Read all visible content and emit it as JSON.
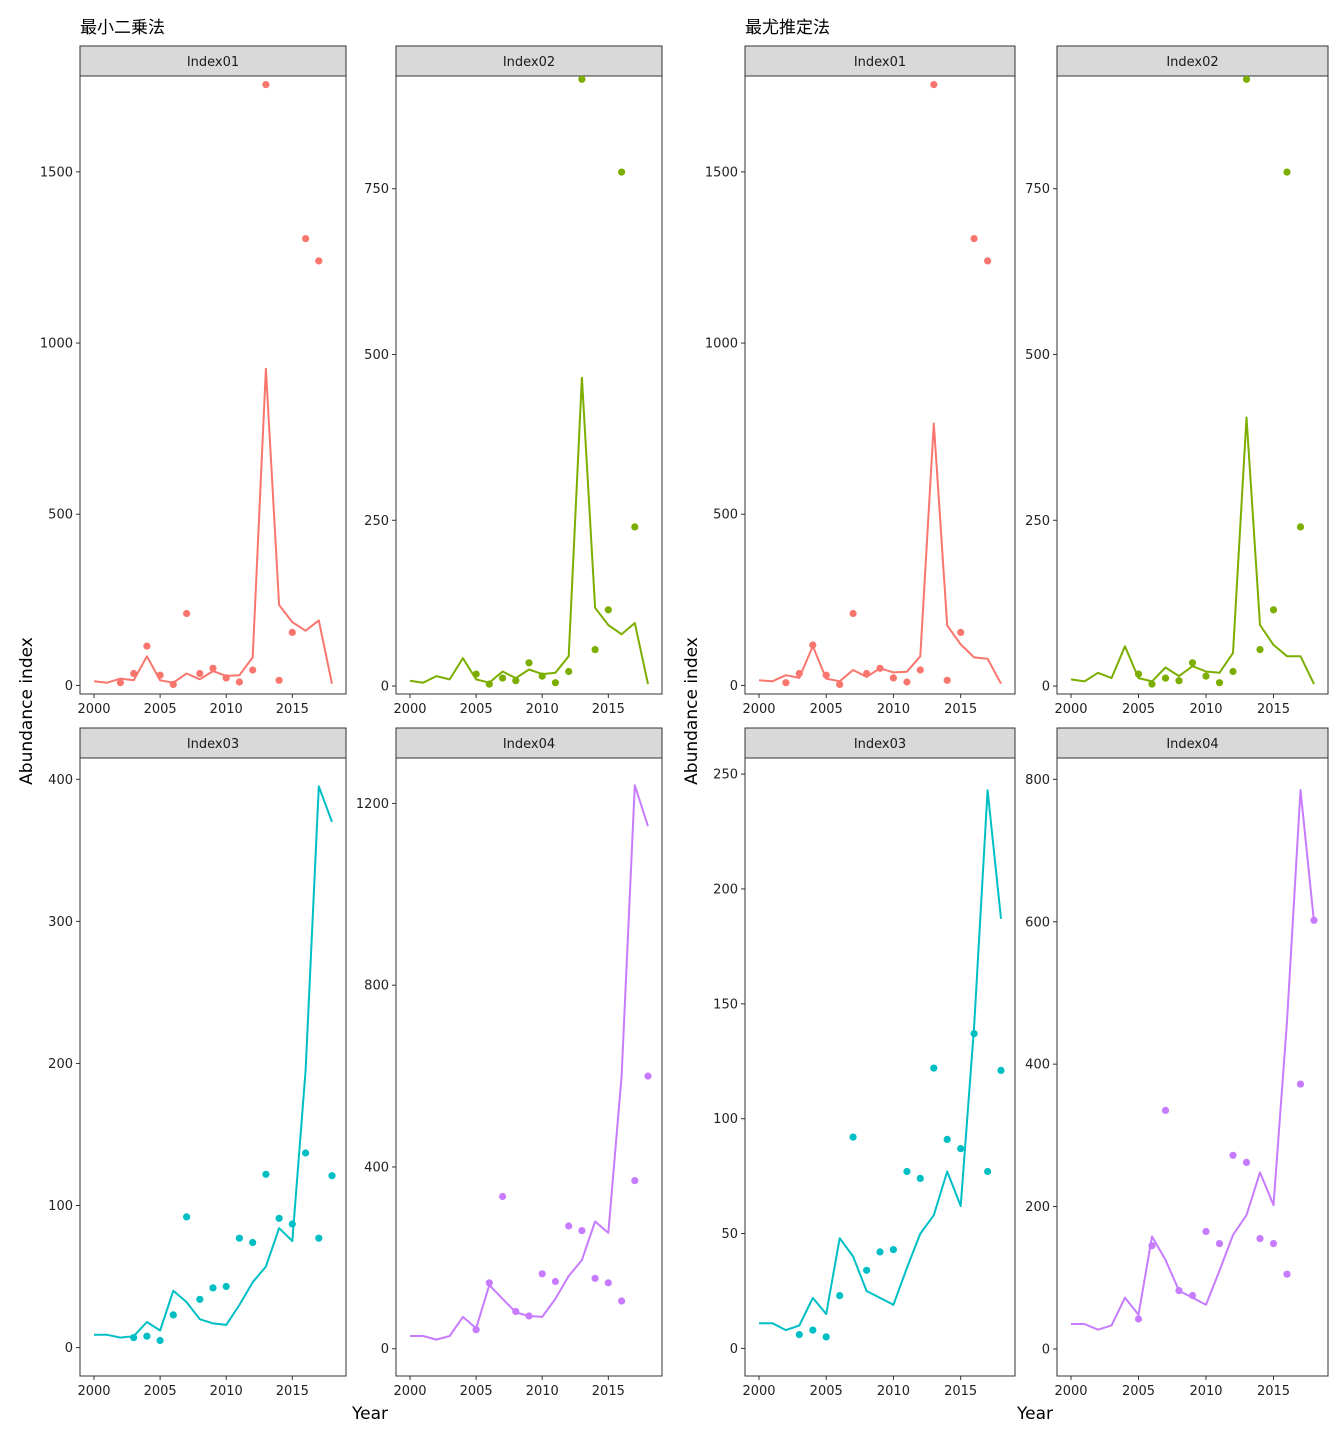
{
  "chart_data": [
    {
      "type": "line",
      "title": "最小二乗法",
      "xlabel": "Year",
      "ylabel": "Abundance index",
      "colors": {
        "Index01": "#F8766D",
        "Index02": "#7CAE00",
        "Index03": "#00BFC4",
        "Index04": "#C77CFF"
      },
      "panels": [
        {
          "name": "Index01",
          "xlim": [
            2000,
            2018
          ],
          "xticks": [
            2000,
            2005,
            2010,
            2015
          ],
          "ylim": [
            -25,
            1780
          ],
          "yticks": [
            0,
            500,
            1000,
            1500
          ],
          "line": {
            "x": [
              2000,
              2001,
              2002,
              2003,
              2004,
              2005,
              2006,
              2007,
              2008,
              2009,
              2010,
              2011,
              2012,
              2013,
              2014,
              2015,
              2016,
              2017,
              2018
            ],
            "y": [
              12,
              8,
              20,
              15,
              85,
              15,
              8,
              35,
              18,
              42,
              28,
              30,
              82,
              925,
              235,
              185,
              160,
              190,
              5
            ]
          },
          "points": {
            "x": [
              2002,
              2003,
              2004,
              2005,
              2006,
              2007,
              2008,
              2009,
              2010,
              2011,
              2012,
              2013,
              2014,
              2015,
              2016,
              2017
            ],
            "y": [
              8,
              35,
              115,
              30,
              3,
              210,
              35,
              50,
              22,
              10,
              45,
              1755,
              15,
              155,
              1305,
              1240
            ]
          }
        },
        {
          "name": "Index02",
          "xlim": [
            2000,
            2018
          ],
          "xticks": [
            2000,
            2005,
            2010,
            2015
          ],
          "ylim": [
            -12,
            920
          ],
          "yticks": [
            0,
            250,
            500,
            750
          ],
          "line": {
            "x": [
              2000,
              2001,
              2002,
              2003,
              2004,
              2005,
              2006,
              2007,
              2008,
              2009,
              2010,
              2011,
              2012,
              2013,
              2014,
              2015,
              2016,
              2017,
              2018
            ],
            "y": [
              8,
              5,
              15,
              10,
              42,
              10,
              5,
              22,
              12,
              25,
              18,
              20,
              45,
              465,
              118,
              92,
              78,
              95,
              3
            ]
          },
          "points": {
            "x": [
              2005,
              2006,
              2007,
              2008,
              2009,
              2010,
              2011,
              2012,
              2013,
              2014,
              2015,
              2016,
              2017
            ],
            "y": [
              18,
              3,
              12,
              8,
              35,
              15,
              5,
              22,
              915,
              55,
              115,
              775,
              240
            ]
          }
        },
        {
          "name": "Index03",
          "xlim": [
            2000,
            2018
          ],
          "xticks": [
            2000,
            2005,
            2010,
            2015
          ],
          "ylim": [
            -20,
            415
          ],
          "yticks": [
            0,
            100,
            200,
            300,
            400
          ],
          "line": {
            "x": [
              2000,
              2001,
              2002,
              2003,
              2004,
              2005,
              2006,
              2007,
              2008,
              2009,
              2010,
              2011,
              2012,
              2013,
              2014,
              2015,
              2016,
              2017,
              2018
            ],
            "y": [
              9,
              9,
              7,
              8,
              18,
              12,
              40,
              32,
              20,
              17,
              16,
              30,
              46,
              57,
              84,
              75,
              195,
              395,
              370
            ]
          },
          "points": {
            "x": [
              2003,
              2004,
              2005,
              2006,
              2007,
              2008,
              2009,
              2010,
              2011,
              2012,
              2013,
              2014,
              2015,
              2016,
              2017,
              2018
            ],
            "y": [
              7,
              8,
              5,
              23,
              92,
              34,
              42,
              43,
              77,
              74,
              122,
              91,
              87,
              137,
              77,
              121
            ]
          }
        },
        {
          "name": "Index04",
          "xlim": [
            2000,
            2018
          ],
          "xticks": [
            2000,
            2005,
            2010,
            2015
          ],
          "ylim": [
            -60,
            1300
          ],
          "yticks": [
            0,
            400,
            800,
            1200
          ],
          "line": {
            "x": [
              2000,
              2001,
              2002,
              2003,
              2004,
              2005,
              2006,
              2007,
              2008,
              2009,
              2010,
              2011,
              2012,
              2013,
              2014,
              2015,
              2016,
              2017,
              2018
            ],
            "y": [
              28,
              28,
              20,
              28,
              70,
              45,
              140,
              110,
              80,
              72,
              70,
              110,
              160,
              195,
              280,
              255,
              600,
              1240,
              1150
            ]
          },
          "points": {
            "x": [
              2005,
              2006,
              2007,
              2008,
              2009,
              2010,
              2011,
              2012,
              2013,
              2014,
              2015,
              2016,
              2017,
              2018
            ],
            "y": [
              42,
              145,
              335,
              82,
              72,
              165,
              148,
              270,
              260,
              155,
              145,
              105,
              370,
              600
            ]
          }
        }
      ]
    },
    {
      "type": "line",
      "title": "最尤推定法",
      "xlabel": "Year",
      "ylabel": "Abundance index",
      "colors": {
        "Index01": "#F8766D",
        "Index02": "#7CAE00",
        "Index03": "#00BFC4",
        "Index04": "#C77CFF"
      },
      "panels": [
        {
          "name": "Index01",
          "xlim": [
            2000,
            2018
          ],
          "xticks": [
            2000,
            2005,
            2010,
            2015
          ],
          "ylim": [
            -25,
            1780
          ],
          "yticks": [
            0,
            500,
            1000,
            1500
          ],
          "line": {
            "x": [
              2000,
              2001,
              2002,
              2003,
              2004,
              2005,
              2006,
              2007,
              2008,
              2009,
              2010,
              2011,
              2012,
              2013,
              2014,
              2015,
              2016,
              2017,
              2018
            ],
            "y": [
              15,
              12,
              30,
              22,
              115,
              20,
              12,
              45,
              25,
              50,
              38,
              40,
              85,
              765,
              175,
              120,
              82,
              78,
              5
            ]
          },
          "points": {
            "x": [
              2002,
              2003,
              2004,
              2005,
              2006,
              2007,
              2008,
              2009,
              2010,
              2011,
              2012,
              2013,
              2014,
              2015,
              2016,
              2017
            ],
            "y": [
              8,
              35,
              118,
              30,
              3,
              210,
              35,
              50,
              22,
              10,
              45,
              1755,
              15,
              155,
              1305,
              1240
            ]
          }
        },
        {
          "name": "Index02",
          "xlim": [
            2000,
            2018
          ],
          "xticks": [
            2000,
            2005,
            2010,
            2015
          ],
          "ylim": [
            -12,
            920
          ],
          "yticks": [
            0,
            250,
            500,
            750
          ],
          "line": {
            "x": [
              2000,
              2001,
              2002,
              2003,
              2004,
              2005,
              2006,
              2007,
              2008,
              2009,
              2010,
              2011,
              2012,
              2013,
              2014,
              2015,
              2016,
              2017,
              2018
            ],
            "y": [
              10,
              7,
              20,
              12,
              60,
              12,
              7,
              28,
              15,
              30,
              22,
              20,
              50,
              405,
              92,
              62,
              45,
              45,
              3
            ]
          },
          "points": {
            "x": [
              2005,
              2006,
              2007,
              2008,
              2009,
              2010,
              2011,
              2012,
              2013,
              2014,
              2015,
              2016,
              2017
            ],
            "y": [
              18,
              3,
              12,
              8,
              35,
              15,
              5,
              22,
              915,
              55,
              115,
              775,
              240
            ]
          }
        },
        {
          "name": "Index03",
          "xlim": [
            2000,
            2018
          ],
          "xticks": [
            2000,
            2005,
            2010,
            2015
          ],
          "ylim": [
            -12,
            257
          ],
          "yticks": [
            0,
            50,
            100,
            150,
            200,
            250
          ],
          "line": {
            "x": [
              2000,
              2001,
              2002,
              2003,
              2004,
              2005,
              2006,
              2007,
              2008,
              2009,
              2010,
              2011,
              2012,
              2013,
              2014,
              2015,
              2016,
              2017,
              2018
            ],
            "y": [
              11,
              11,
              8,
              10,
              22,
              15,
              48,
              40,
              25,
              22,
              19,
              35,
              50,
              58,
              77,
              62,
              140,
              243,
              187
            ]
          },
          "points": {
            "x": [
              2003,
              2004,
              2005,
              2006,
              2007,
              2008,
              2009,
              2010,
              2011,
              2012,
              2013,
              2014,
              2015,
              2016,
              2017,
              2018
            ],
            "y": [
              6,
              8,
              5,
              23,
              92,
              34,
              42,
              43,
              77,
              74,
              122,
              91,
              87,
              137,
              77,
              121
            ]
          }
        },
        {
          "name": "Index04",
          "xlim": [
            2000,
            2018
          ],
          "xticks": [
            2000,
            2005,
            2010,
            2015
          ],
          "ylim": [
            -38,
            830
          ],
          "yticks": [
            0,
            200,
            400,
            600,
            800
          ],
          "line": {
            "x": [
              2000,
              2001,
              2002,
              2003,
              2004,
              2005,
              2006,
              2007,
              2008,
              2009,
              2010,
              2011,
              2012,
              2013,
              2014,
              2015,
              2016,
              2017,
              2018
            ],
            "y": [
              35,
              35,
              27,
              33,
              72,
              48,
              158,
              125,
              82,
              72,
              62,
              110,
              160,
              188,
              248,
              202,
              460,
              785,
              600
            ]
          },
          "points": {
            "x": [
              2005,
              2006,
              2007,
              2008,
              2009,
              2010,
              2011,
              2012,
              2013,
              2014,
              2015,
              2016,
              2017,
              2018
            ],
            "y": [
              42,
              145,
              335,
              82,
              75,
              165,
              148,
              272,
              262,
              155,
              148,
              105,
              372,
              602
            ]
          }
        }
      ]
    }
  ]
}
